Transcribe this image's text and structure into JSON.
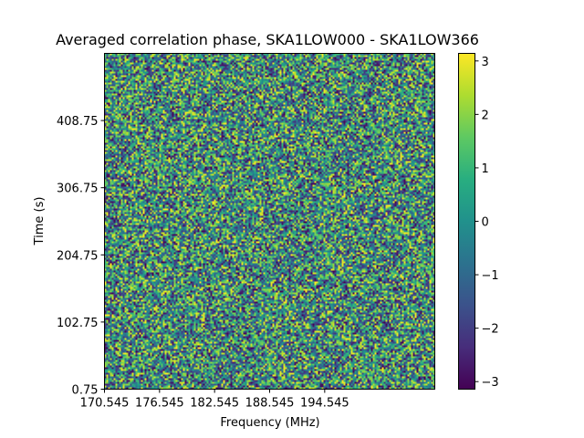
{
  "chart_data": {
    "type": "heatmap",
    "title": "Averaged correlation phase, SKA1LOW000 - SKA1LOW366",
    "xlabel": "Frequency (MHz)",
    "ylabel": "Time (s)",
    "x_ticks": [
      170.545,
      176.545,
      182.545,
      188.545,
      194.545
    ],
    "x_tick_labels": [
      "170.545",
      "176.545",
      "182.545",
      "188.545",
      "194.545"
    ],
    "xlim": [
      170.545,
      206.545
    ],
    "y_ticks": [
      0.75,
      102.75,
      204.75,
      306.75,
      408.75
    ],
    "y_tick_labels": [
      "0.75",
      "102.75",
      "204.75",
      "306.75",
      "408.75"
    ],
    "ylim": [
      0.75,
      510.75
    ],
    "colorbar": {
      "colormap": "viridis",
      "range": [
        -3.14159,
        3.14159
      ],
      "ticks": [
        3,
        2,
        1,
        0,
        -1,
        -2,
        -3
      ],
      "tick_labels": [
        "3",
        "2",
        "1",
        "0",
        "−1",
        "−2",
        "−3"
      ]
    },
    "grid": false,
    "data_description": "Pseudo-random phase values uniformly spread in [-pi, pi] over a dense frequency x time grid (noise-like)."
  }
}
